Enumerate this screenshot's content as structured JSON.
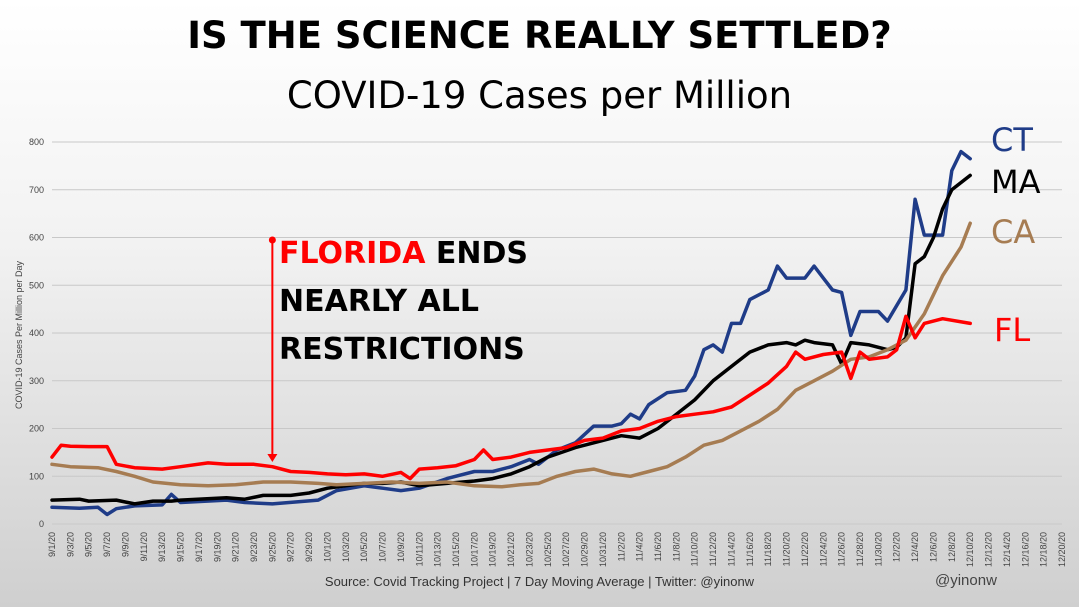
{
  "title": "IS THE SCIENCE REALLY SETTLED?",
  "subtitle": "COVID-19 Cases per Million",
  "source": "Source: Covid Tracking Project | 7 Day Moving Average | Twitter: @yinonw",
  "handle": "@yinonw",
  "annotation": {
    "part1": "FLORIDA",
    "part2": " ENDS",
    "line2": "NEARLY ALL",
    "line3": "RESTRICTIONS",
    "date": "9/25/20"
  },
  "colors": {
    "CT": "#1f3c88",
    "MA": "#000000",
    "CA": "#a67c52",
    "FL": "#ff0000",
    "grid": "#c8c8c8",
    "annotation_red": "#ff0000"
  },
  "chart_data": {
    "type": "line",
    "title": "COVID-19 Cases per Million",
    "ylabel": "COVID-19 Cases Per Million per Day",
    "xlabel": "",
    "ylim": [
      0,
      800
    ],
    "yticks": [
      0,
      100,
      200,
      300,
      400,
      500,
      600,
      700,
      800
    ],
    "grid": true,
    "legend": "labels at line ends (right)",
    "x_start": "9/1/20",
    "x_end": "12/20/20",
    "xticks": [
      "9/1/20",
      "9/3/20",
      "9/5/20",
      "9/7/20",
      "9/9/20",
      "9/11/20",
      "9/13/20",
      "9/15/20",
      "9/17/20",
      "9/19/20",
      "9/21/20",
      "9/23/20",
      "9/25/20",
      "9/27/20",
      "9/29/20",
      "10/1/20",
      "10/3/20",
      "10/5/20",
      "10/7/20",
      "10/9/20",
      "10/11/20",
      "10/13/20",
      "10/15/20",
      "10/17/20",
      "10/19/20",
      "10/21/20",
      "10/23/20",
      "10/25/20",
      "10/27/20",
      "10/29/20",
      "10/31/20",
      "11/2/20",
      "11/4/20",
      "11/6/20",
      "11/8/20",
      "11/10/20",
      "11/12/20",
      "11/14/20",
      "11/16/20",
      "11/18/20",
      "11/20/20",
      "11/22/20",
      "11/24/20",
      "11/26/20",
      "11/28/20",
      "11/30/20",
      "12/2/20",
      "12/4/20",
      "12/6/20",
      "12/8/20",
      "12/10/20",
      "12/12/20",
      "12/14/20",
      "12/16/20",
      "12/18/20",
      "12/20/20"
    ],
    "series": [
      {
        "name": "CT",
        "points": [
          [
            "9/1/20",
            35
          ],
          [
            "9/4/20",
            33
          ],
          [
            "9/6/20",
            35
          ],
          [
            "9/7/20",
            20
          ],
          [
            "9/8/20",
            32
          ],
          [
            "9/10/20",
            38
          ],
          [
            "9/13/20",
            40
          ],
          [
            "9/14/20",
            62
          ],
          [
            "9/15/20",
            45
          ],
          [
            "9/20/20",
            50
          ],
          [
            "9/22/20",
            45
          ],
          [
            "9/25/20",
            42
          ],
          [
            "9/30/20",
            50
          ],
          [
            "10/2/20",
            70
          ],
          [
            "10/5/20",
            80
          ],
          [
            "10/7/20",
            75
          ],
          [
            "10/9/20",
            70
          ],
          [
            "10/11/20",
            75
          ],
          [
            "10/14/20",
            95
          ],
          [
            "10/17/20",
            110
          ],
          [
            "10/19/20",
            110
          ],
          [
            "10/21/20",
            120
          ],
          [
            "10/23/20",
            135
          ],
          [
            "10/24/20",
            125
          ],
          [
            "10/26/20",
            155
          ],
          [
            "10/28/20",
            170
          ],
          [
            "10/30/20",
            205
          ],
          [
            "10/31/20",
            205
          ],
          [
            "11/1/20",
            205
          ],
          [
            "11/2/20",
            210
          ],
          [
            "11/3/20",
            230
          ],
          [
            "11/4/20",
            220
          ],
          [
            "11/5/20",
            250
          ],
          [
            "11/7/20",
            275
          ],
          [
            "11/9/20",
            280
          ],
          [
            "11/10/20",
            310
          ],
          [
            "11/11/20",
            365
          ],
          [
            "11/12/20",
            375
          ],
          [
            "11/13/20",
            360
          ],
          [
            "11/14/20",
            420
          ],
          [
            "11/15/20",
            420
          ],
          [
            "11/16/20",
            470
          ],
          [
            "11/18/20",
            490
          ],
          [
            "11/19/20",
            540
          ],
          [
            "11/20/20",
            515
          ],
          [
            "11/22/20",
            515
          ],
          [
            "11/23/20",
            540
          ],
          [
            "11/24/20",
            515
          ],
          [
            "11/25/20",
            490
          ],
          [
            "11/26/20",
            485
          ],
          [
            "11/27/20",
            395
          ],
          [
            "11/28/20",
            445
          ],
          [
            "11/30/20",
            445
          ],
          [
            "12/1/20",
            425
          ],
          [
            "12/3/20",
            490
          ],
          [
            "12/4/20",
            680
          ],
          [
            "12/5/20",
            605
          ],
          [
            "12/7/20",
            605
          ],
          [
            "12/8/20",
            740
          ],
          [
            "12/9/20",
            780
          ],
          [
            "12/10/20",
            765
          ]
        ]
      },
      {
        "name": "MA",
        "points": [
          [
            "9/1/20",
            50
          ],
          [
            "9/4/20",
            52
          ],
          [
            "9/5/20",
            48
          ],
          [
            "9/8/20",
            50
          ],
          [
            "9/10/20",
            42
          ],
          [
            "9/12/20",
            48
          ],
          [
            "9/14/20",
            48
          ],
          [
            "9/15/20",
            50
          ],
          [
            "9/20/20",
            55
          ],
          [
            "9/22/20",
            52
          ],
          [
            "9/24/20",
            60
          ],
          [
            "9/27/20",
            60
          ],
          [
            "9/29/20",
            65
          ],
          [
            "10/1/20",
            75
          ],
          [
            "10/3/20",
            80
          ],
          [
            "10/5/20",
            85
          ],
          [
            "10/7/20",
            85
          ],
          [
            "10/9/20",
            88
          ],
          [
            "10/11/20",
            80
          ],
          [
            "10/14/20",
            85
          ],
          [
            "10/17/20",
            90
          ],
          [
            "10/19/20",
            95
          ],
          [
            "10/21/20",
            105
          ],
          [
            "10/23/20",
            120
          ],
          [
            "10/25/20",
            140
          ],
          [
            "10/28/20",
            160
          ],
          [
            "10/31/20",
            175
          ],
          [
            "11/2/20",
            185
          ],
          [
            "11/4/20",
            180
          ],
          [
            "11/6/20",
            200
          ],
          [
            "11/8/20",
            230
          ],
          [
            "11/10/20",
            260
          ],
          [
            "11/12/20",
            300
          ],
          [
            "11/14/20",
            330
          ],
          [
            "11/16/20",
            360
          ],
          [
            "11/18/20",
            375
          ],
          [
            "11/20/20",
            380
          ],
          [
            "11/21/20",
            375
          ],
          [
            "11/22/20",
            385
          ],
          [
            "11/23/20",
            380
          ],
          [
            "11/25/20",
            375
          ],
          [
            "11/26/20",
            335
          ],
          [
            "11/27/20",
            380
          ],
          [
            "11/29/20",
            375
          ],
          [
            "12/1/20",
            365
          ],
          [
            "12/2/20",
            370
          ],
          [
            "12/3/20",
            390
          ],
          [
            "12/4/20",
            545
          ],
          [
            "12/5/20",
            560
          ],
          [
            "12/6/20",
            600
          ],
          [
            "12/7/20",
            660
          ],
          [
            "12/8/20",
            700
          ],
          [
            "12/10/20",
            730
          ]
        ]
      },
      {
        "name": "CA",
        "points": [
          [
            "9/1/20",
            125
          ],
          [
            "9/3/20",
            120
          ],
          [
            "9/6/20",
            118
          ],
          [
            "9/8/20",
            110
          ],
          [
            "9/10/20",
            100
          ],
          [
            "9/12/20",
            88
          ],
          [
            "9/15/20",
            82
          ],
          [
            "9/18/20",
            80
          ],
          [
            "9/21/20",
            82
          ],
          [
            "9/24/20",
            88
          ],
          [
            "9/27/20",
            88
          ],
          [
            "9/30/20",
            85
          ],
          [
            "10/2/20",
            82
          ],
          [
            "10/5/20",
            85
          ],
          [
            "10/8/20",
            88
          ],
          [
            "10/11/20",
            85
          ],
          [
            "10/14/20",
            88
          ],
          [
            "10/17/20",
            80
          ],
          [
            "10/20/20",
            78
          ],
          [
            "10/22/20",
            82
          ],
          [
            "10/24/20",
            85
          ],
          [
            "10/26/20",
            100
          ],
          [
            "10/28/20",
            110
          ],
          [
            "10/30/20",
            115
          ],
          [
            "11/1/20",
            105
          ],
          [
            "11/3/20",
            100
          ],
          [
            "11/5/20",
            110
          ],
          [
            "11/7/20",
            120
          ],
          [
            "11/9/20",
            140
          ],
          [
            "11/11/20",
            165
          ],
          [
            "11/13/20",
            175
          ],
          [
            "11/15/20",
            195
          ],
          [
            "11/17/20",
            215
          ],
          [
            "11/19/20",
            240
          ],
          [
            "11/21/20",
            280
          ],
          [
            "11/23/20",
            300
          ],
          [
            "11/25/20",
            320
          ],
          [
            "11/27/20",
            345
          ],
          [
            "11/29/20",
            350
          ],
          [
            "12/1/20",
            365
          ],
          [
            "12/3/20",
            385
          ],
          [
            "12/5/20",
            440
          ],
          [
            "12/7/20",
            520
          ],
          [
            "12/9/20",
            580
          ],
          [
            "12/10/20",
            630
          ]
        ]
      },
      {
        "name": "FL",
        "points": [
          [
            "9/1/20",
            140
          ],
          [
            "9/2/20",
            165
          ],
          [
            "9/3/20",
            163
          ],
          [
            "9/5/20",
            162
          ],
          [
            "9/7/20",
            162
          ],
          [
            "9/8/20",
            125
          ],
          [
            "9/10/20",
            118
          ],
          [
            "9/13/20",
            115
          ],
          [
            "9/15/20",
            120
          ],
          [
            "9/18/20",
            128
          ],
          [
            "9/20/20",
            125
          ],
          [
            "9/23/20",
            125
          ],
          [
            "9/25/20",
            120
          ],
          [
            "9/27/20",
            110
          ],
          [
            "9/29/20",
            108
          ],
          [
            "10/1/20",
            105
          ],
          [
            "10/3/20",
            103
          ],
          [
            "10/5/20",
            105
          ],
          [
            "10/7/20",
            100
          ],
          [
            "10/9/20",
            108
          ],
          [
            "10/10/20",
            95
          ],
          [
            "10/11/20",
            115
          ],
          [
            "10/13/20",
            118
          ],
          [
            "10/15/20",
            122
          ],
          [
            "10/17/20",
            135
          ],
          [
            "10/18/20",
            155
          ],
          [
            "10/19/20",
            135
          ],
          [
            "10/21/20",
            140
          ],
          [
            "10/23/20",
            150
          ],
          [
            "10/25/20",
            155
          ],
          [
            "10/27/20",
            160
          ],
          [
            "10/29/20",
            175
          ],
          [
            "10/31/20",
            180
          ],
          [
            "11/2/20",
            195
          ],
          [
            "11/4/20",
            200
          ],
          [
            "11/6/20",
            215
          ],
          [
            "11/8/20",
            225
          ],
          [
            "11/10/20",
            230
          ],
          [
            "11/12/20",
            235
          ],
          [
            "11/14/20",
            245
          ],
          [
            "11/16/20",
            270
          ],
          [
            "11/18/20",
            295
          ],
          [
            "11/20/20",
            330
          ],
          [
            "11/21/20",
            360
          ],
          [
            "11/22/20",
            345
          ],
          [
            "11/24/20",
            355
          ],
          [
            "11/26/20",
            360
          ],
          [
            "11/27/20",
            305
          ],
          [
            "11/28/20",
            360
          ],
          [
            "11/29/20",
            345
          ],
          [
            "12/1/20",
            350
          ],
          [
            "12/2/20",
            365
          ],
          [
            "12/3/20",
            435
          ],
          [
            "12/4/20",
            390
          ],
          [
            "12/5/20",
            420
          ],
          [
            "12/7/20",
            430
          ],
          [
            "12/10/20",
            420
          ]
        ]
      }
    ]
  }
}
